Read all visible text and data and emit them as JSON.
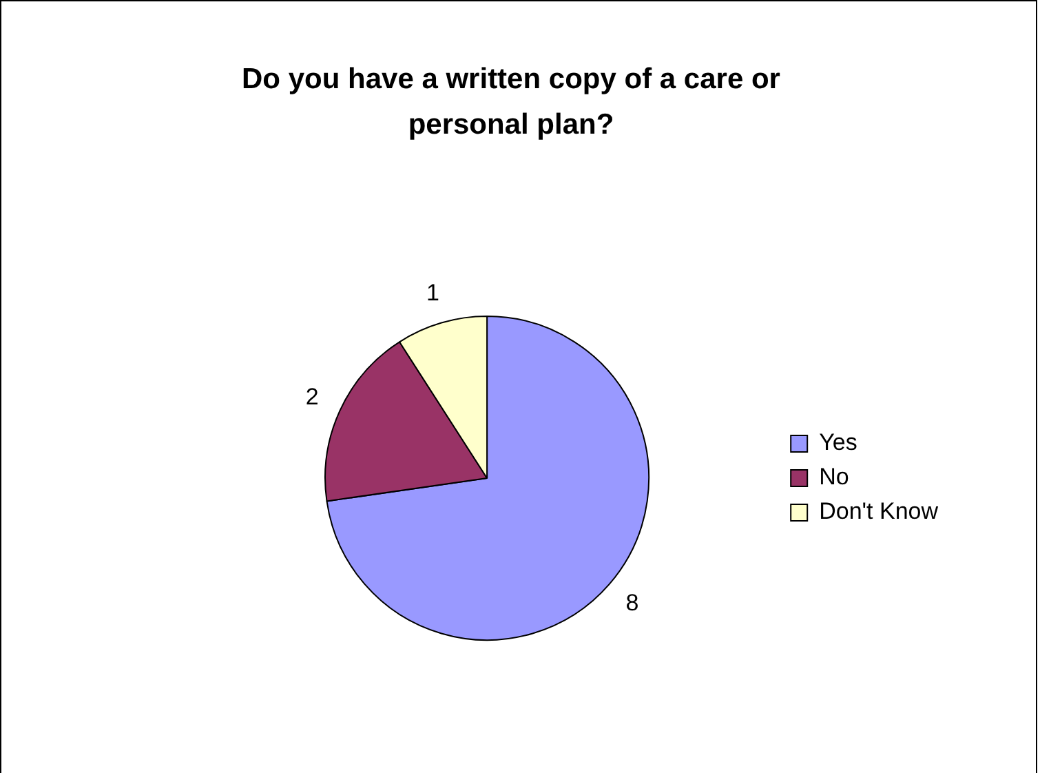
{
  "chart_data": {
    "type": "pie",
    "title": "Do you have a written copy of a care or personal plan?",
    "categories": [
      "Yes",
      "No",
      "Don't Know"
    ],
    "values": [
      8,
      2,
      1
    ],
    "colors": [
      "#9999ff",
      "#993366",
      "#ffffcc"
    ],
    "data_labels": true,
    "legend": "right"
  }
}
